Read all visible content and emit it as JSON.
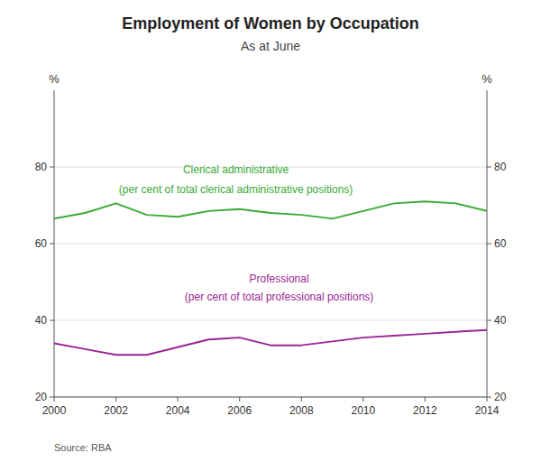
{
  "chart_data": {
    "type": "line",
    "title": "Employment of Women by Occupation",
    "subtitle": "As at June",
    "source": "Source: RBA",
    "ylabel": "%",
    "y2label": "%",
    "x": [
      2000,
      2001,
      2002,
      2003,
      2004,
      2005,
      2006,
      2007,
      2008,
      2009,
      2010,
      2011,
      2012,
      2013,
      2014
    ],
    "xlim": [
      2000,
      2014
    ],
    "xticks": [
      2000,
      2002,
      2004,
      2006,
      2008,
      2010,
      2012,
      2014
    ],
    "ylim": [
      20,
      100
    ],
    "yticks": [
      20,
      40,
      60,
      80
    ],
    "y2lim": [
      20,
      100
    ],
    "y2ticks": [
      20,
      40,
      60,
      80
    ],
    "grid": true,
    "series": [
      {
        "color": "#3aaa35",
        "values": [
          66.5,
          68.0,
          70.5,
          67.5,
          67.0,
          68.5,
          69.0,
          68.0,
          67.5,
          66.5,
          68.5,
          70.5,
          71.0,
          70.5,
          68.5
        ]
      },
      {
        "color": "#9b2593",
        "values": [
          34.0,
          32.5,
          31.0,
          31.0,
          33.0,
          35.0,
          35.5,
          33.5,
          33.5,
          34.5,
          35.5,
          36.0,
          36.5,
          37.0,
          37.5
        ]
      }
    ],
    "annotations": [
      {
        "text": "Clerical administrative",
        "color": "#3aaa35"
      },
      {
        "text": "(per cent of total clerical administrative positions)",
        "color": "#3aaa35"
      },
      {
        "text": "Professional",
        "color": "#9b2593"
      },
      {
        "text": "(per cent of total professional positions)",
        "color": "#9b2593"
      }
    ]
  }
}
